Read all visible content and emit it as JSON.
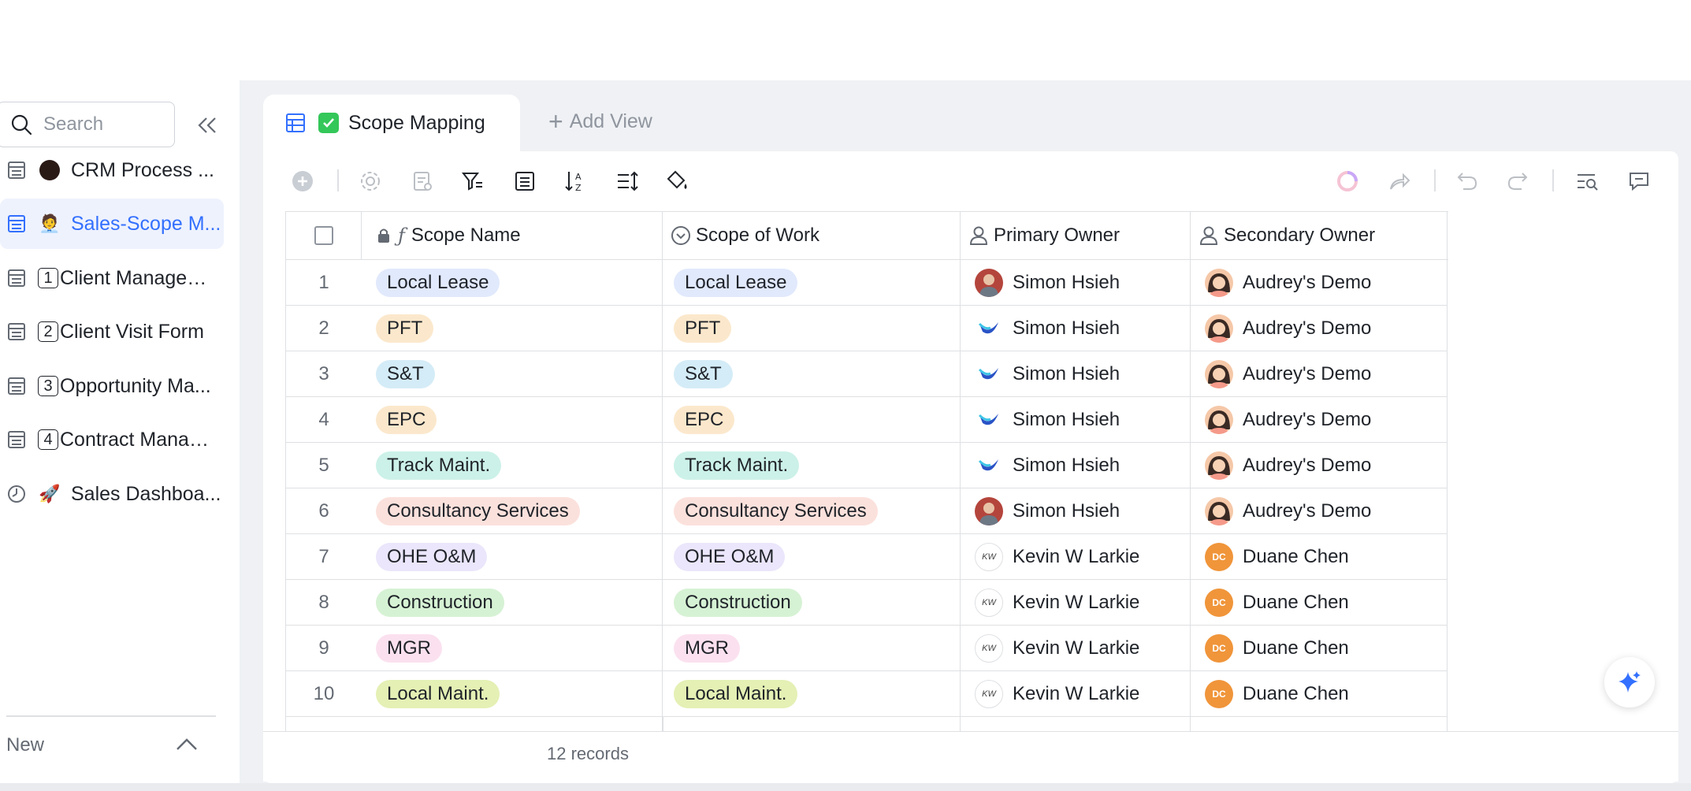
{
  "sidebar": {
    "search_placeholder": "Search",
    "items": [
      {
        "label": "CRM Process ...",
        "type": "table",
        "icon": "black-circle"
      },
      {
        "label": "Sales-Scope M...",
        "type": "table",
        "icon": "person-emoji",
        "active": true
      },
      {
        "label": "Client Managem...",
        "type": "table",
        "number": "1"
      },
      {
        "label": "Client Visit Form",
        "type": "table",
        "number": "2"
      },
      {
        "label": "Opportunity Ma...",
        "type": "table",
        "number": "3"
      },
      {
        "label": "Contract Manag...",
        "type": "table",
        "number": "4"
      },
      {
        "label": "Sales Dashboa...",
        "type": "dashboard",
        "icon": "rocket-emoji"
      }
    ],
    "new_label": "New"
  },
  "view": {
    "active_tab": "Scope Mapping",
    "add_view_label": "Add View"
  },
  "table": {
    "columns": [
      {
        "label": "Scope Name",
        "icon": "formula-icon",
        "locked": true
      },
      {
        "label": "Scope of Work",
        "icon": "single-select-icon"
      },
      {
        "label": "Primary Owner",
        "icon": "person-icon"
      },
      {
        "label": "Secondary Owner",
        "icon": "person-icon"
      }
    ],
    "rows": [
      {
        "n": "1",
        "scope": "Local Lease",
        "work": "Local Lease",
        "primary": "Simon Hsieh",
        "primary_av": "photo",
        "secondary": "Audrey's Demo",
        "secondary_av": "ad",
        "color": "#e1e9fc"
      },
      {
        "n": "2",
        "scope": "PFT",
        "work": "PFT",
        "primary": "Simon Hsieh",
        "primary_av": "logo",
        "secondary": "Audrey's Demo",
        "secondary_av": "ad",
        "color": "#fbe8cc"
      },
      {
        "n": "3",
        "scope": "S&T",
        "work": "S&T",
        "primary": "Simon Hsieh",
        "primary_av": "logo",
        "secondary": "Audrey's Demo",
        "secondary_av": "ad",
        "color": "#d4ecf7"
      },
      {
        "n": "4",
        "scope": "EPC",
        "work": "EPC",
        "primary": "Simon Hsieh",
        "primary_av": "logo",
        "secondary": "Audrey's Demo",
        "secondary_av": "ad",
        "color": "#fbe8cc"
      },
      {
        "n": "5",
        "scope": "Track Maint.",
        "work": "Track Maint.",
        "primary": "Simon Hsieh",
        "primary_av": "logo",
        "secondary": "Audrey's Demo",
        "secondary_av": "ad",
        "color": "#ccf1e8"
      },
      {
        "n": "6",
        "scope": "Consultancy Services",
        "work": "Consultancy Services",
        "primary": "Simon Hsieh",
        "primary_av": "photo",
        "secondary": "Audrey's Demo",
        "secondary_av": "ad",
        "color": "#fbe1dc"
      },
      {
        "n": "7",
        "scope": "OHE O&M",
        "work": "OHE O&M",
        "primary": "Kevin W Larkie",
        "primary_av": "kw",
        "secondary": "Duane Chen",
        "secondary_av": "dc",
        "color": "#ebe6fb"
      },
      {
        "n": "8",
        "scope": "Construction",
        "work": "Construction",
        "primary": "Kevin W Larkie",
        "primary_av": "kw",
        "secondary": "Duane Chen",
        "secondary_av": "dc",
        "color": "#d6f2d4"
      },
      {
        "n": "9",
        "scope": "MGR",
        "work": "MGR",
        "primary": "Kevin W Larkie",
        "primary_av": "kw",
        "secondary": "Duane Chen",
        "secondary_av": "dc",
        "color": "#fbe1ef"
      },
      {
        "n": "10",
        "scope": "Local Maint.",
        "work": "Local Maint.",
        "primary": "Kevin W Larkie",
        "primary_av": "kw",
        "secondary": "Duane Chen",
        "secondary_av": "dc",
        "color": "#e4f0b4"
      }
    ],
    "avatar_initials": {
      "dc": "DC",
      "kw": "KW"
    }
  },
  "footer": {
    "records": "12 records"
  },
  "colors": {
    "accent": "#3370ff",
    "active_bg": "#eef2fd"
  }
}
